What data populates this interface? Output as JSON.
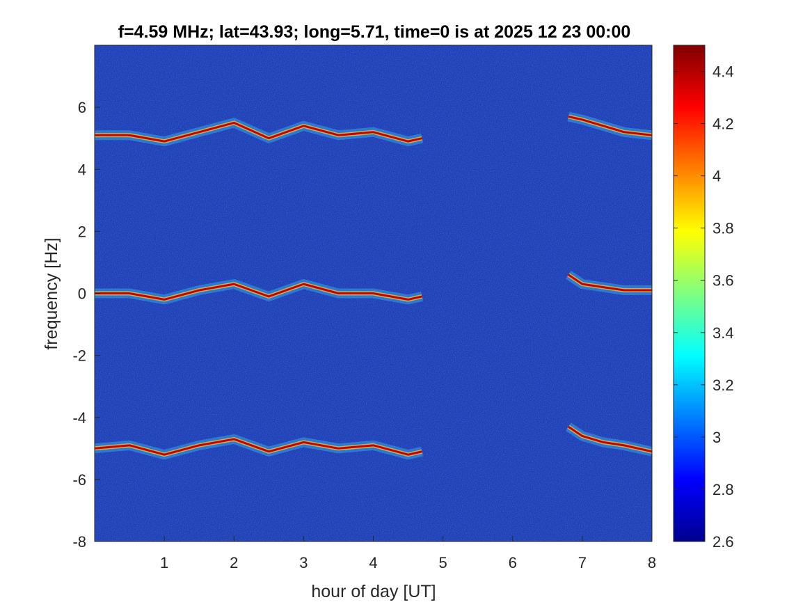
{
  "chart_data": {
    "type": "heatmap",
    "title": "f=4.59 MHz;  lat=43.93; long=5.71, time=0 is at 2025 12 23 00:00",
    "xlabel": "hour of day [UT]",
    "ylabel": "frequency [Hz]",
    "xlim": [
      0,
      8
    ],
    "ylim": [
      -8,
      8
    ],
    "x_ticks": [
      "1",
      "2",
      "3",
      "4",
      "5",
      "6",
      "7",
      "8"
    ],
    "y_ticks": [
      "-8",
      "-6",
      "-4",
      "-2",
      "0",
      "2",
      "4",
      "6"
    ],
    "colorbar": {
      "range": [
        2.6,
        4.5
      ],
      "ticks": [
        "2.6",
        "2.8",
        "3",
        "3.2",
        "3.4",
        "3.6",
        "3.8",
        "4",
        "4.2",
        "4.4"
      ],
      "colormap": "jet"
    },
    "background_color": "#1c3cb4",
    "traces": [
      {
        "band": "upper",
        "x": [
          0.0,
          0.5,
          1.0,
          1.5,
          2.0,
          2.5,
          3.0,
          3.5,
          4.0,
          4.5,
          4.7
        ],
        "y": [
          5.1,
          5.1,
          4.9,
          5.2,
          5.5,
          5.0,
          5.4,
          5.1,
          5.2,
          4.9,
          5.0
        ]
      },
      {
        "band": "center",
        "x": [
          0.0,
          0.5,
          1.0,
          1.5,
          2.0,
          2.5,
          3.0,
          3.5,
          4.0,
          4.5,
          4.7
        ],
        "y": [
          0.0,
          0.0,
          -0.2,
          0.1,
          0.3,
          -0.1,
          0.3,
          0.0,
          0.0,
          -0.2,
          -0.1
        ]
      },
      {
        "band": "lower",
        "x": [
          0.0,
          0.5,
          1.0,
          1.5,
          2.0,
          2.5,
          3.0,
          3.5,
          4.0,
          4.5,
          4.7
        ],
        "y": [
          -5.0,
          -4.9,
          -5.2,
          -4.9,
          -4.7,
          -5.1,
          -4.8,
          -5.0,
          -4.9,
          -5.2,
          -5.1
        ]
      },
      {
        "band": "upper-late",
        "x": [
          6.8,
          7.0,
          7.3,
          7.6,
          8.0
        ],
        "y": [
          5.7,
          5.6,
          5.4,
          5.2,
          5.1
        ]
      },
      {
        "band": "center-late",
        "x": [
          6.8,
          7.0,
          7.3,
          7.6,
          8.0
        ],
        "y": [
          0.6,
          0.3,
          0.2,
          0.1,
          0.1
        ]
      },
      {
        "band": "lower-late",
        "x": [
          6.8,
          7.0,
          7.3,
          7.6,
          8.0
        ],
        "y": [
          -4.3,
          -4.6,
          -4.8,
          -4.9,
          -5.1
        ]
      }
    ]
  }
}
